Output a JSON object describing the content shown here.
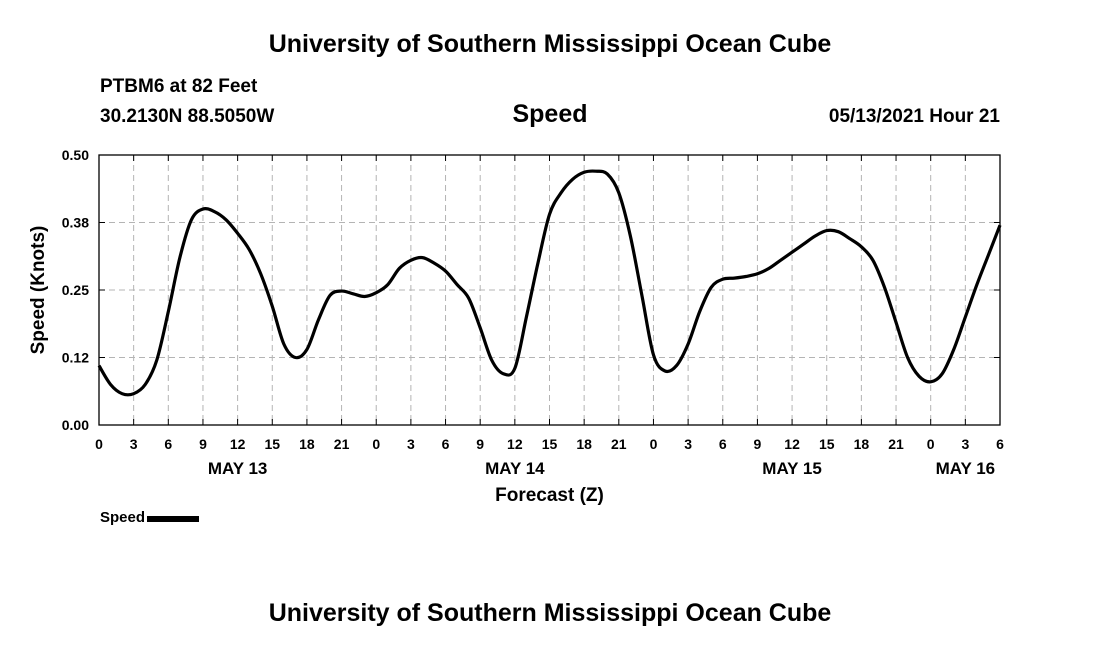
{
  "header": {
    "title": "University of Southern Mississippi Ocean Cube",
    "station": "PTBM6 at 82 Feet",
    "coordinates": "30.2130N  88.5050W",
    "variable": "Speed",
    "run_time": "05/13/2021 Hour 21"
  },
  "footer": {
    "title": "University of Southern Mississippi Ocean Cube"
  },
  "legend": {
    "label": "Speed",
    "color": "#000000"
  },
  "chart_data": {
    "type": "line",
    "title": "Speed",
    "xlabel": "Forecast (Z)",
    "ylabel": "Speed (Knots)",
    "x_unit": "hours from 0Z May 13",
    "xlim": [
      0,
      78
    ],
    "ylim": [
      0,
      0.5
    ],
    "yticks": [
      0.0,
      0.125,
      0.25,
      0.375,
      0.5
    ],
    "ytick_labels": [
      "0.00",
      "0.12",
      "0.25",
      "0.38",
      "0.50"
    ],
    "xticks": [
      0,
      3,
      6,
      9,
      12,
      15,
      18,
      21,
      24,
      27,
      30,
      33,
      36,
      39,
      42,
      45,
      48,
      51,
      54,
      57,
      60,
      63,
      66,
      69,
      72,
      75,
      78
    ],
    "xtick_labels": [
      "0",
      "3",
      "6",
      "9",
      "12",
      "15",
      "18",
      "21",
      "0",
      "3",
      "6",
      "9",
      "12",
      "15",
      "18",
      "21",
      "0",
      "3",
      "6",
      "9",
      "12",
      "15",
      "18",
      "21",
      "0",
      "3",
      "6"
    ],
    "day_labels": [
      {
        "x": 12,
        "label": "MAY 13"
      },
      {
        "x": 36,
        "label": "MAY 14"
      },
      {
        "x": 60,
        "label": "MAY 15"
      },
      {
        "x": 75,
        "label": "MAY 16"
      }
    ],
    "grid": true,
    "legend_position": "bottom-left",
    "series": [
      {
        "name": "Speed",
        "color": "#000000",
        "x": [
          0,
          1,
          2,
          3,
          4,
          5,
          6,
          7,
          8,
          9,
          10,
          11,
          12,
          13,
          14,
          15,
          16,
          17,
          18,
          19,
          20,
          21,
          22,
          23,
          24,
          25,
          26,
          27,
          28,
          29,
          30,
          31,
          32,
          33,
          34,
          35,
          36,
          37,
          38,
          39,
          40,
          41,
          42,
          43,
          44,
          45,
          46,
          47,
          48,
          49,
          50,
          51,
          52,
          53,
          54,
          55,
          56,
          57,
          58,
          59,
          60,
          61,
          62,
          63,
          64,
          65,
          66,
          67,
          68,
          69,
          70,
          71,
          72,
          73,
          74,
          75,
          76,
          77,
          78
        ],
        "values": [
          0.11,
          0.075,
          0.058,
          0.058,
          0.075,
          0.12,
          0.21,
          0.31,
          0.38,
          0.4,
          0.395,
          0.38,
          0.355,
          0.325,
          0.28,
          0.22,
          0.15,
          0.125,
          0.14,
          0.195,
          0.24,
          0.248,
          0.243,
          0.238,
          0.245,
          0.26,
          0.29,
          0.305,
          0.31,
          0.3,
          0.285,
          0.26,
          0.235,
          0.18,
          0.12,
          0.095,
          0.105,
          0.2,
          0.3,
          0.39,
          0.43,
          0.455,
          0.468,
          0.47,
          0.465,
          0.43,
          0.35,
          0.24,
          0.13,
          0.1,
          0.11,
          0.15,
          0.21,
          0.255,
          0.27,
          0.272,
          0.275,
          0.28,
          0.29,
          0.305,
          0.32,
          0.335,
          0.35,
          0.36,
          0.358,
          0.345,
          0.33,
          0.305,
          0.255,
          0.19,
          0.125,
          0.09,
          0.08,
          0.095,
          0.14,
          0.2,
          0.26,
          0.315,
          0.37
        ]
      }
    ]
  }
}
